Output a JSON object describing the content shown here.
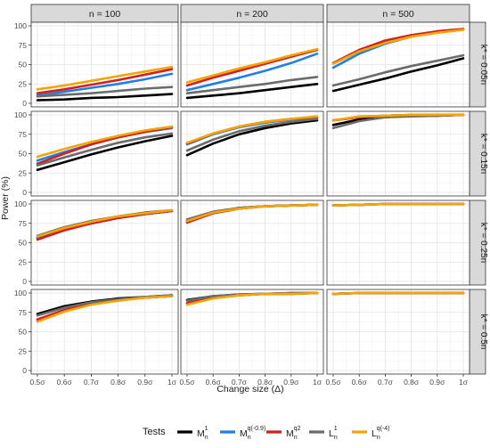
{
  "chart_data": {
    "type": "line",
    "xlabel": "Change size (Δ)",
    "ylabel": "Power (%)",
    "x_ticks": [
      "0.5σ",
      "0.6σ",
      "0.7σ",
      "0.8σ",
      "0.9σ",
      "1σ"
    ],
    "x_values": [
      0.5,
      0.6,
      0.7,
      0.8,
      0.9,
      1.0
    ],
    "ylim": [
      0,
      100
    ],
    "y_ticks": [
      "0",
      "25",
      "50",
      "75",
      "100"
    ],
    "grid": true,
    "columns": [
      "n = 100",
      "n = 200",
      "n = 500"
    ],
    "rows": [
      "k* = 0.05n",
      "k* = 0.15n",
      "k* = 0.25n",
      "k* = 0.5n"
    ],
    "legend_title": "Tests",
    "legend_position": "bottom",
    "series": [
      {
        "name": "Mn1",
        "color": "#000000"
      },
      {
        "name": "Mn q(-0.9)",
        "color": "#1f7fe8"
      },
      {
        "name": "Mn q2",
        "color": "#d21f1f"
      },
      {
        "name": "Ln1",
        "color": "#6b6b6b"
      },
      {
        "name": "Ln q(-4)",
        "color": "#f5a400"
      }
    ],
    "panels": [
      [
        {
          "col": "n = 100",
          "row": "k* = 0.05n",
          "values": {
            "M1": [
              4,
              5,
              7,
              8,
              10,
              12
            ],
            "Mq09": [
              10,
              15,
              20,
              25,
              31,
              38
            ],
            "Mq2": [
              13,
              18,
              24,
              30,
              37,
              44
            ],
            "L1": [
              9,
              11,
              13,
              16,
              19,
              21
            ],
            "Lq4": [
              18,
              23,
              29,
              35,
              41,
              47
            ]
          }
        },
        {
          "col": "n = 200",
          "row": "k* = 0.05n",
          "values": {
            "M1": [
              7,
              10,
              13,
              17,
              21,
              25
            ],
            "Mq09": [
              17,
              25,
              33,
              42,
              52,
              64
            ],
            "Mq2": [
              23,
              33,
              42,
              51,
              60,
              69
            ],
            "L1": [
              13,
              17,
              21,
              25,
              30,
              34
            ],
            "Lq4": [
              27,
              36,
              45,
              53,
              62,
              70
            ]
          }
        },
        {
          "col": "n = 500",
          "row": "k* = 0.05n",
          "values": {
            "M1": [
              16,
              24,
              32,
              41,
              49,
              58
            ],
            "Mq09": [
              46,
              64,
              77,
              86,
              92,
              95
            ],
            "Mq2": [
              52,
              69,
              81,
              88,
              93,
              96
            ],
            "L1": [
              23,
              31,
              40,
              48,
              55,
              62
            ],
            "Lq4": [
              51,
              67,
              78,
              86,
              91,
              95
            ]
          }
        }
      ],
      [
        {
          "col": "n = 100",
          "row": "k* = 0.15n",
          "values": {
            "M1": [
              29,
              39,
              49,
              58,
              66,
              73
            ],
            "Mq09": [
              41,
              52,
              62,
              71,
              78,
              83
            ],
            "Mq2": [
              37,
              50,
              62,
              71,
              78,
              84
            ],
            "L1": [
              35,
              45,
              55,
              64,
              71,
              76
            ],
            "Lq4": [
              46,
              56,
              65,
              73,
              80,
              85
            ]
          }
        },
        {
          "col": "n = 200",
          "row": "k* = 0.15n",
          "values": {
            "M1": [
              48,
              63,
              75,
              83,
              89,
              93
            ],
            "Mq09": [
              62,
              75,
              84,
              90,
              94,
              97
            ],
            "Mq2": [
              63,
              76,
              85,
              91,
              95,
              97
            ],
            "L1": [
              54,
              68,
              79,
              86,
              91,
              95
            ],
            "Lq4": [
              64,
              76,
              85,
              91,
              95,
              98
            ]
          }
        },
        {
          "col": "n = 500",
          "row": "k* = 0.15n",
          "values": {
            "M1": [
              87,
              94,
              97,
              99,
              99,
              100
            ],
            "Mq09": [
              93,
              97,
              99,
              100,
              100,
              100
            ],
            "Mq2": [
              93,
              97,
              99,
              100,
              100,
              100
            ],
            "L1": [
              83,
              92,
              97,
              98,
              99,
              100
            ],
            "Lq4": [
              93,
              98,
              99,
              100,
              100,
              100
            ]
          }
        }
      ],
      [
        {
          "col": "n = 100",
          "row": "k* = 0.25n",
          "values": {
            "M1": [
              56,
              67,
              75,
              82,
              87,
              91
            ],
            "Mq09": [
              56,
              67,
              75,
              82,
              87,
              91
            ],
            "Mq2": [
              54,
              66,
              75,
              82,
              87,
              91
            ],
            "L1": [
              59,
              70,
              78,
              84,
              89,
              92
            ],
            "Lq4": [
              58,
              69,
              77,
              84,
              88,
              92
            ]
          }
        },
        {
          "col": "n = 200",
          "row": "k* = 0.25n",
          "values": {
            "M1": [
              79,
              89,
              95,
              97,
              98,
              99
            ],
            "Mq09": [
              77,
              88,
              94,
              97,
              98,
              99
            ],
            "Mq2": [
              76,
              88,
              94,
              97,
              98,
              99
            ],
            "L1": [
              80,
              90,
              95,
              97,
              98,
              99
            ],
            "Lq4": [
              78,
              89,
              94,
              97,
              98,
              99
            ]
          }
        },
        {
          "col": "n = 500",
          "row": "k* = 0.25n",
          "values": {
            "M1": [
              98,
              99,
              100,
              100,
              100,
              100
            ],
            "Mq09": [
              98,
              99,
              100,
              100,
              100,
              100
            ],
            "Mq2": [
              98,
              99,
              100,
              100,
              100,
              100
            ],
            "L1": [
              98,
              99,
              100,
              100,
              100,
              100
            ],
            "Lq4": [
              98,
              99,
              100,
              100,
              100,
              100
            ]
          }
        }
      ],
      [
        {
          "col": "n = 100",
          "row": "k* = 0.5n",
          "values": {
            "M1": [
              73,
              83,
              89,
              93,
              95,
              97
            ],
            "Mq09": [
              65,
              77,
              86,
              91,
              94,
              96
            ],
            "Mq2": [
              66,
              78,
              86,
              91,
              94,
              96
            ],
            "L1": [
              71,
              81,
              88,
              92,
              95,
              97
            ],
            "Lq4": [
              63,
              76,
              85,
              90,
              94,
              96
            ]
          }
        },
        {
          "col": "n = 200",
          "row": "k* = 0.5n",
          "values": {
            "M1": [
              91,
              96,
              98,
              99,
              100,
              100
            ],
            "Mq09": [
              86,
              94,
              97,
              99,
              99,
              100
            ],
            "Mq2": [
              87,
              94,
              97,
              99,
              99,
              100
            ],
            "L1": [
              90,
              96,
              98,
              99,
              100,
              100
            ],
            "Lq4": [
              85,
              93,
              97,
              99,
              99,
              100
            ]
          }
        },
        {
          "col": "n = 500",
          "row": "k* = 0.5n",
          "values": {
            "M1": [
              99,
              100,
              100,
              100,
              100,
              100
            ],
            "Mq09": [
              99,
              100,
              100,
              100,
              100,
              100
            ],
            "Mq2": [
              99,
              100,
              100,
              100,
              100,
              100
            ],
            "L1": [
              99,
              100,
              100,
              100,
              100,
              100
            ],
            "Lq4": [
              99,
              100,
              100,
              100,
              100,
              100
            ]
          }
        }
      ]
    ]
  }
}
